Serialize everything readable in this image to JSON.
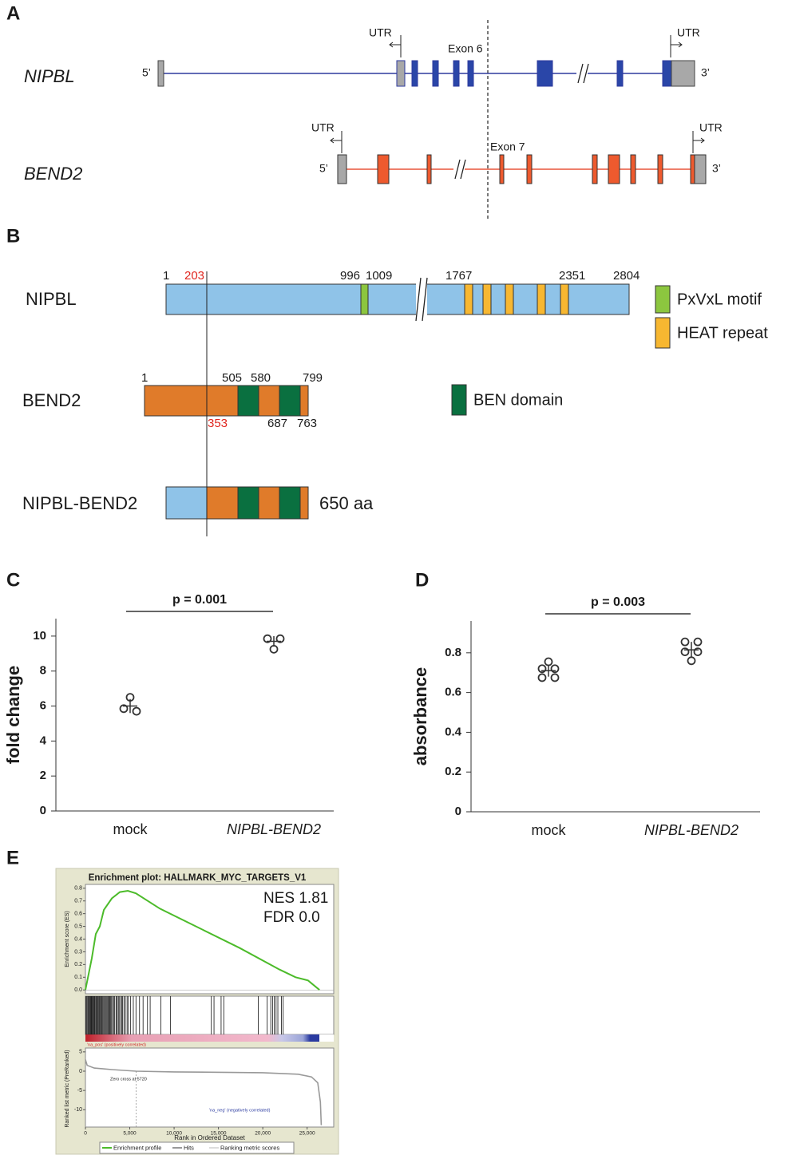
{
  "figure_a": {
    "label": "A",
    "nipbl": {
      "name": "NIPBL",
      "five": "5’",
      "three": "3’",
      "utr_left": "UTR",
      "utr_right": "UTR",
      "exon": "Exon 6"
    },
    "bend2": {
      "name": "BEND2",
      "five": "5’",
      "three": "3’",
      "utr_left": "UTR",
      "utr_right": "UTR",
      "exon": "Exon 7"
    }
  },
  "figure_b": {
    "label": "B",
    "nipbl": {
      "name": "NIPBL",
      "positions": [
        1,
        203,
        996,
        1009,
        1767,
        2351,
        2804
      ]
    },
    "bend2": {
      "name": "BEND2",
      "positions_top": [
        1,
        505,
        580,
        799
      ],
      "positions_bottom": [
        353,
        687,
        763
      ]
    },
    "fusion": {
      "name": "NIPBL-BEND2",
      "length": "650 aa"
    },
    "legend": [
      "PxVxL motif",
      "HEAT repeat",
      "BEN domain"
    ]
  },
  "chart_data": [
    {
      "label": "C",
      "type": "dotplot",
      "ylabel": "fold change",
      "annotation": "p = 0.001",
      "categories": [
        "mock",
        "NIPBL-BEND2"
      ],
      "points": [
        [
          6.5,
          5.85,
          5.7
        ],
        [
          9.25,
          9.85,
          9.85
        ]
      ],
      "means": [
        6.0,
        9.7
      ],
      "errors": [
        0.4,
        0.3
      ],
      "ylim": [
        0,
        11
      ],
      "yticks": [
        0,
        2,
        4,
        6,
        8,
        10
      ]
    },
    {
      "label": "D",
      "type": "dotplot",
      "ylabel": "absorbance",
      "annotation": "p = 0.003",
      "categories": [
        "mock",
        "NIPBL-BEND2"
      ],
      "points": [
        [
          0.755,
          0.72,
          0.72,
          0.675,
          0.675
        ],
        [
          0.76,
          0.855,
          0.855,
          0.805,
          0.805
        ]
      ],
      "means": [
        0.71,
        0.815
      ],
      "errors": [
        0.03,
        0.04
      ],
      "ylim": [
        0,
        0.96
      ],
      "yticks": [
        0,
        0.2,
        0.4,
        0.6,
        0.8
      ]
    },
    {
      "label": "E",
      "type": "gsea",
      "title": "Enrichment plot: HALLMARK_MYC_TARGETS_V1",
      "stats": [
        "NES 1.81",
        "FDR 0.0"
      ],
      "ylabel": "Enrichment score (ES)",
      "xlabel": "Rank in Ordered Dataset",
      "lower_ylabel": "Ranked list metric (PreRanked)",
      "pos_label": "'na_pos' (positively correlated)",
      "neg_label": "'na_neg' (negatively correlated)",
      "zero_cross": "Zero cross at 5720",
      "zero_cross_x": 5720,
      "legend": [
        "Enrichment profile",
        "Hits",
        "Ranking metric scores"
      ],
      "color": "#4cbb2a",
      "x": [
        0,
        720,
        1170,
        1620,
        2080,
        2980,
        3880,
        4780,
        5690,
        8390,
        12900,
        17400,
        21900,
        23700,
        25100,
        26400
      ],
      "es": [
        0,
        0.25,
        0.44,
        0.5,
        0.63,
        0.72,
        0.77,
        0.78,
        0.76,
        0.64,
        0.485,
        0.33,
        0.16,
        0.1,
        0.075,
        0.0
      ],
      "hits": [
        60,
        150,
        250,
        330,
        420,
        500,
        580,
        650,
        720,
        800,
        900,
        980,
        1050,
        1150,
        1230,
        1300,
        1400,
        1500,
        1580,
        1650,
        1750,
        1850,
        1950,
        2050,
        2150,
        2250,
        2350,
        2450,
        2550,
        2650,
        2750,
        2850,
        2950,
        3050,
        3200,
        3300,
        3450,
        3550,
        3700,
        3800,
        3950,
        4100,
        4200,
        4350,
        4500,
        4700,
        4850,
        5100,
        5400,
        5700,
        6100,
        6500,
        7000,
        7300,
        8500,
        9600,
        14200,
        14500,
        15300,
        15600,
        19500,
        20500,
        20900,
        21100,
        21300,
        21500,
        21700,
        22100,
        22300
      ],
      "metric_x": [
        0,
        200,
        1000,
        3000,
        5720,
        10000,
        20000,
        24000,
        25500,
        26200,
        26500,
        26600
      ],
      "metric": [
        3,
        1.5,
        0.8,
        0.4,
        0,
        -0.2,
        -0.4,
        -0.8,
        -1.5,
        -3,
        -8,
        -14
      ],
      "xlim": [
        0,
        28000
      ],
      "xticks": [
        0,
        {
          "value": 5000,
          "label": "5,000"
        },
        {
          "value": 10000,
          "label": "10,000"
        },
        {
          "value": 15000,
          "label": "15,000"
        },
        {
          "value": 20000,
          "label": "20,000"
        },
        {
          "value": 25000,
          "label": "25,000"
        }
      ],
      "ylim": [
        -0.03,
        0.83
      ],
      "yticks": [
        {
          "value": 0,
          "label": "0.0"
        },
        0.1,
        0.2,
        0.3,
        0.4,
        0.5,
        0.6,
        0.7,
        0.8
      ],
      "metric_ylim": [
        -14.5,
        6
      ],
      "metric_yticks": [
        5,
        0,
        -5,
        -10
      ]
    }
  ]
}
